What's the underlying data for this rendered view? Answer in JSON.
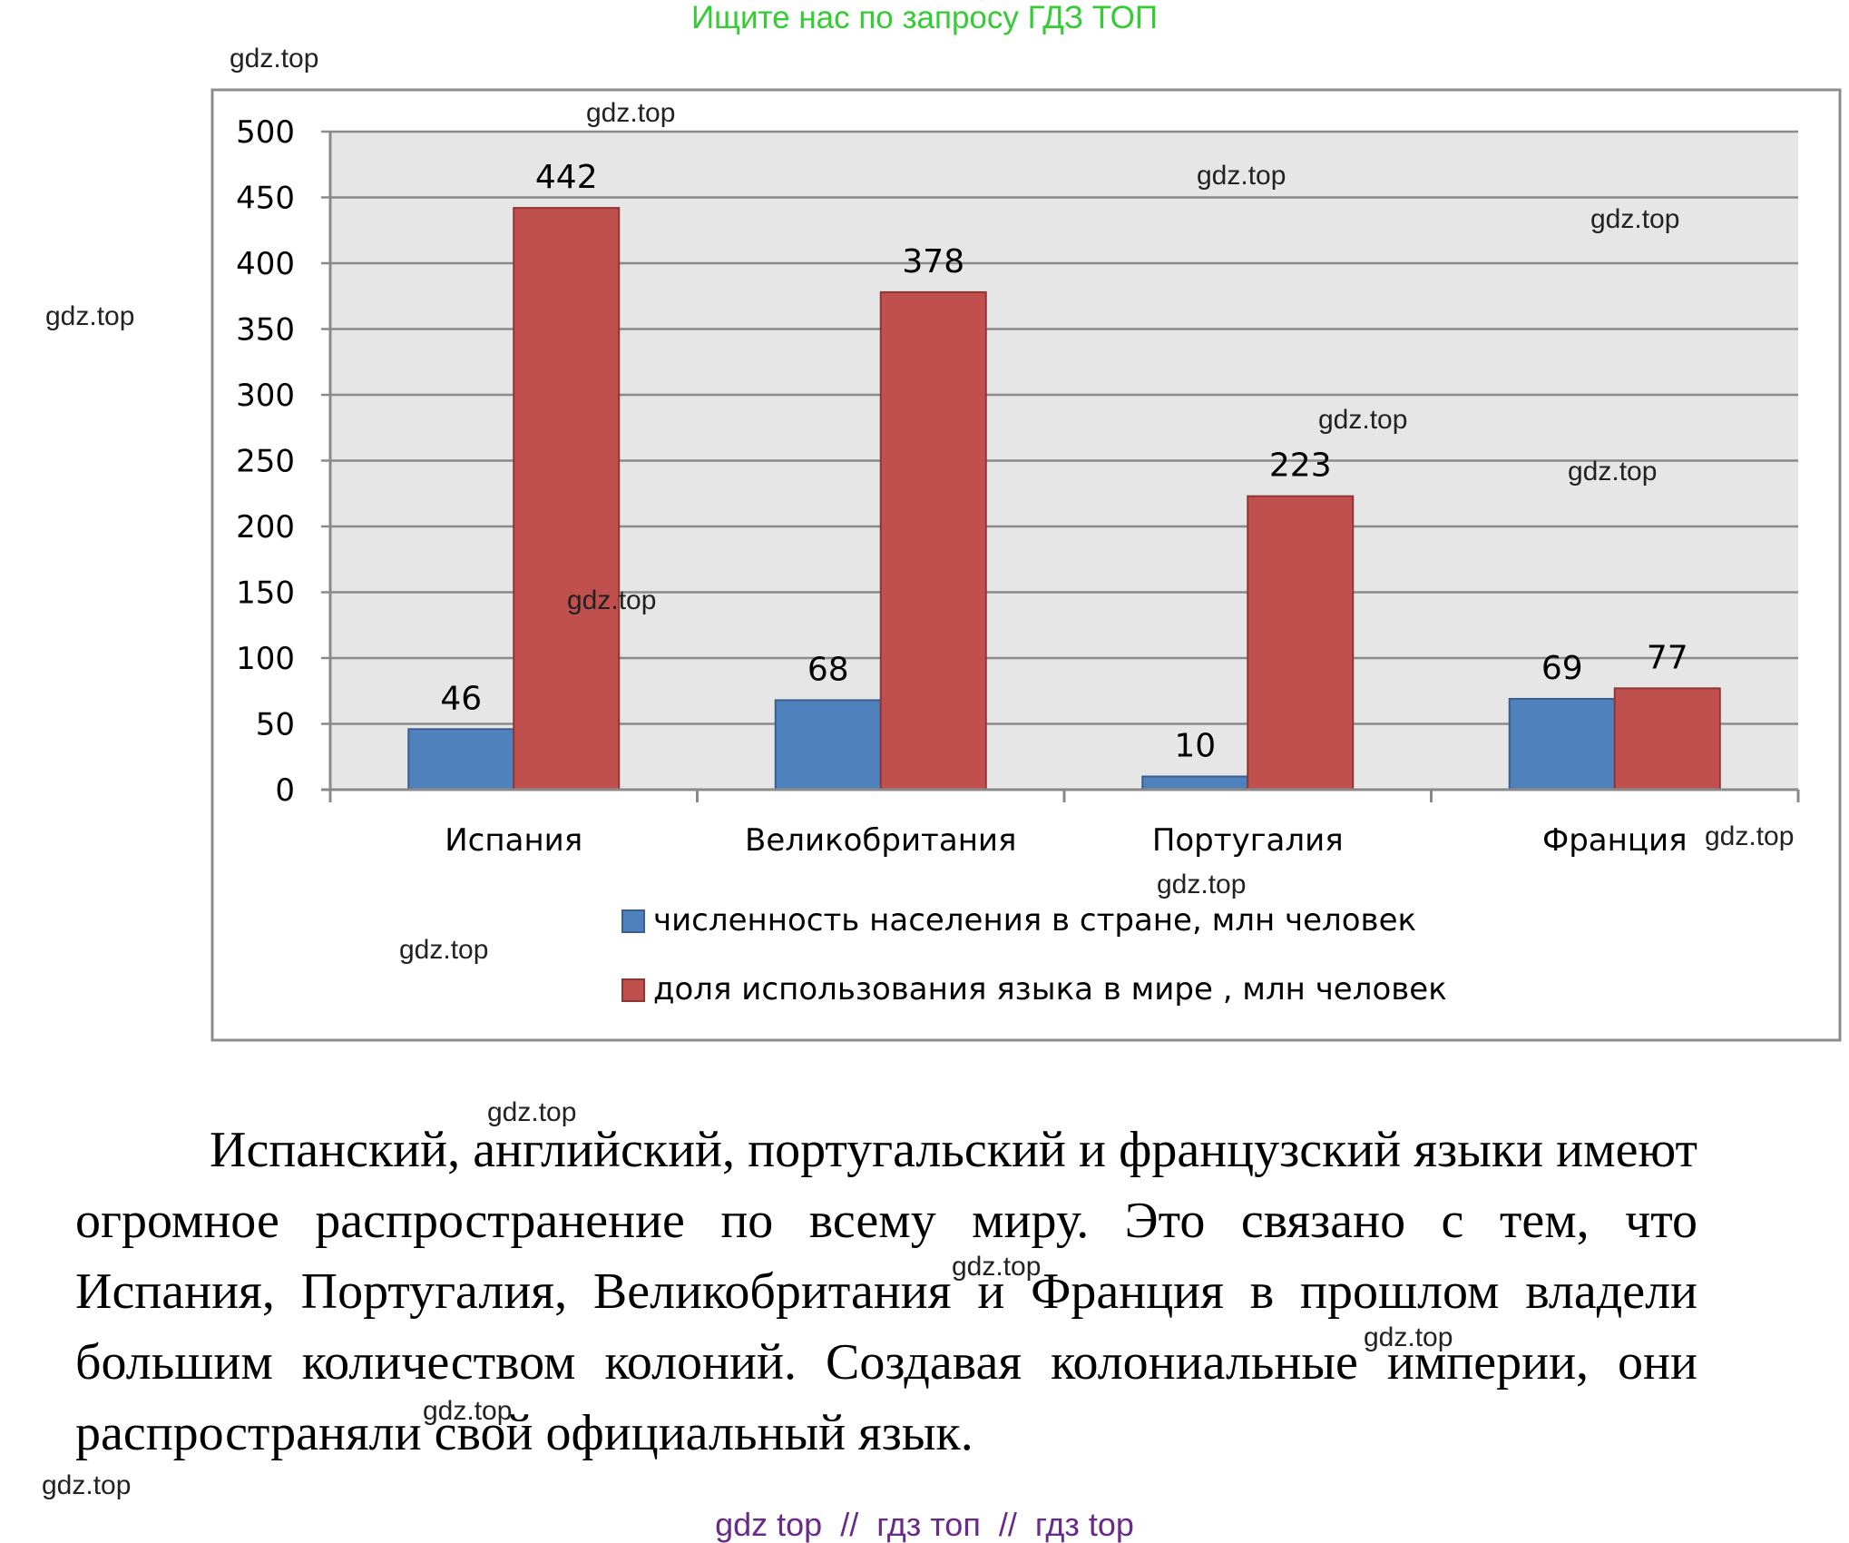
{
  "banner": "Ищите нас по запросу ГДЗ ТОП",
  "watermark": "gdz.top",
  "chart_data": {
    "type": "bar",
    "categories": [
      "Испания",
      "Великобритания",
      "Португалия",
      "Франция"
    ],
    "series": [
      {
        "name": "численность населения в стране, млн человек",
        "values": [
          46,
          68,
          10,
          69
        ],
        "color": "#4f81bd"
      },
      {
        "name": "доля использования языка в мире , млн человек",
        "values": [
          442,
          378,
          223,
          77
        ],
        "color": "#c0504d"
      }
    ],
    "yticks": [
      "0",
      "50",
      "100",
      "150",
      "200",
      "250",
      "300",
      "350",
      "400",
      "450",
      "500"
    ],
    "ylim": [
      0,
      500
    ],
    "grid": true,
    "legend_position": "bottom",
    "plot_background": "#e6e6e6"
  },
  "body_text": "Испанский, английский, португальский и французский языки имеют огромное распространение по всему миру. Это связано с тем, что Испания, Португалия, Великобритания и Франция в прошлом владели большим количеством колоний. Создавая колониальные империи, они распространяли свой официальный язык.",
  "footer": "gdz top  //  гдз топ  //  гдз top"
}
